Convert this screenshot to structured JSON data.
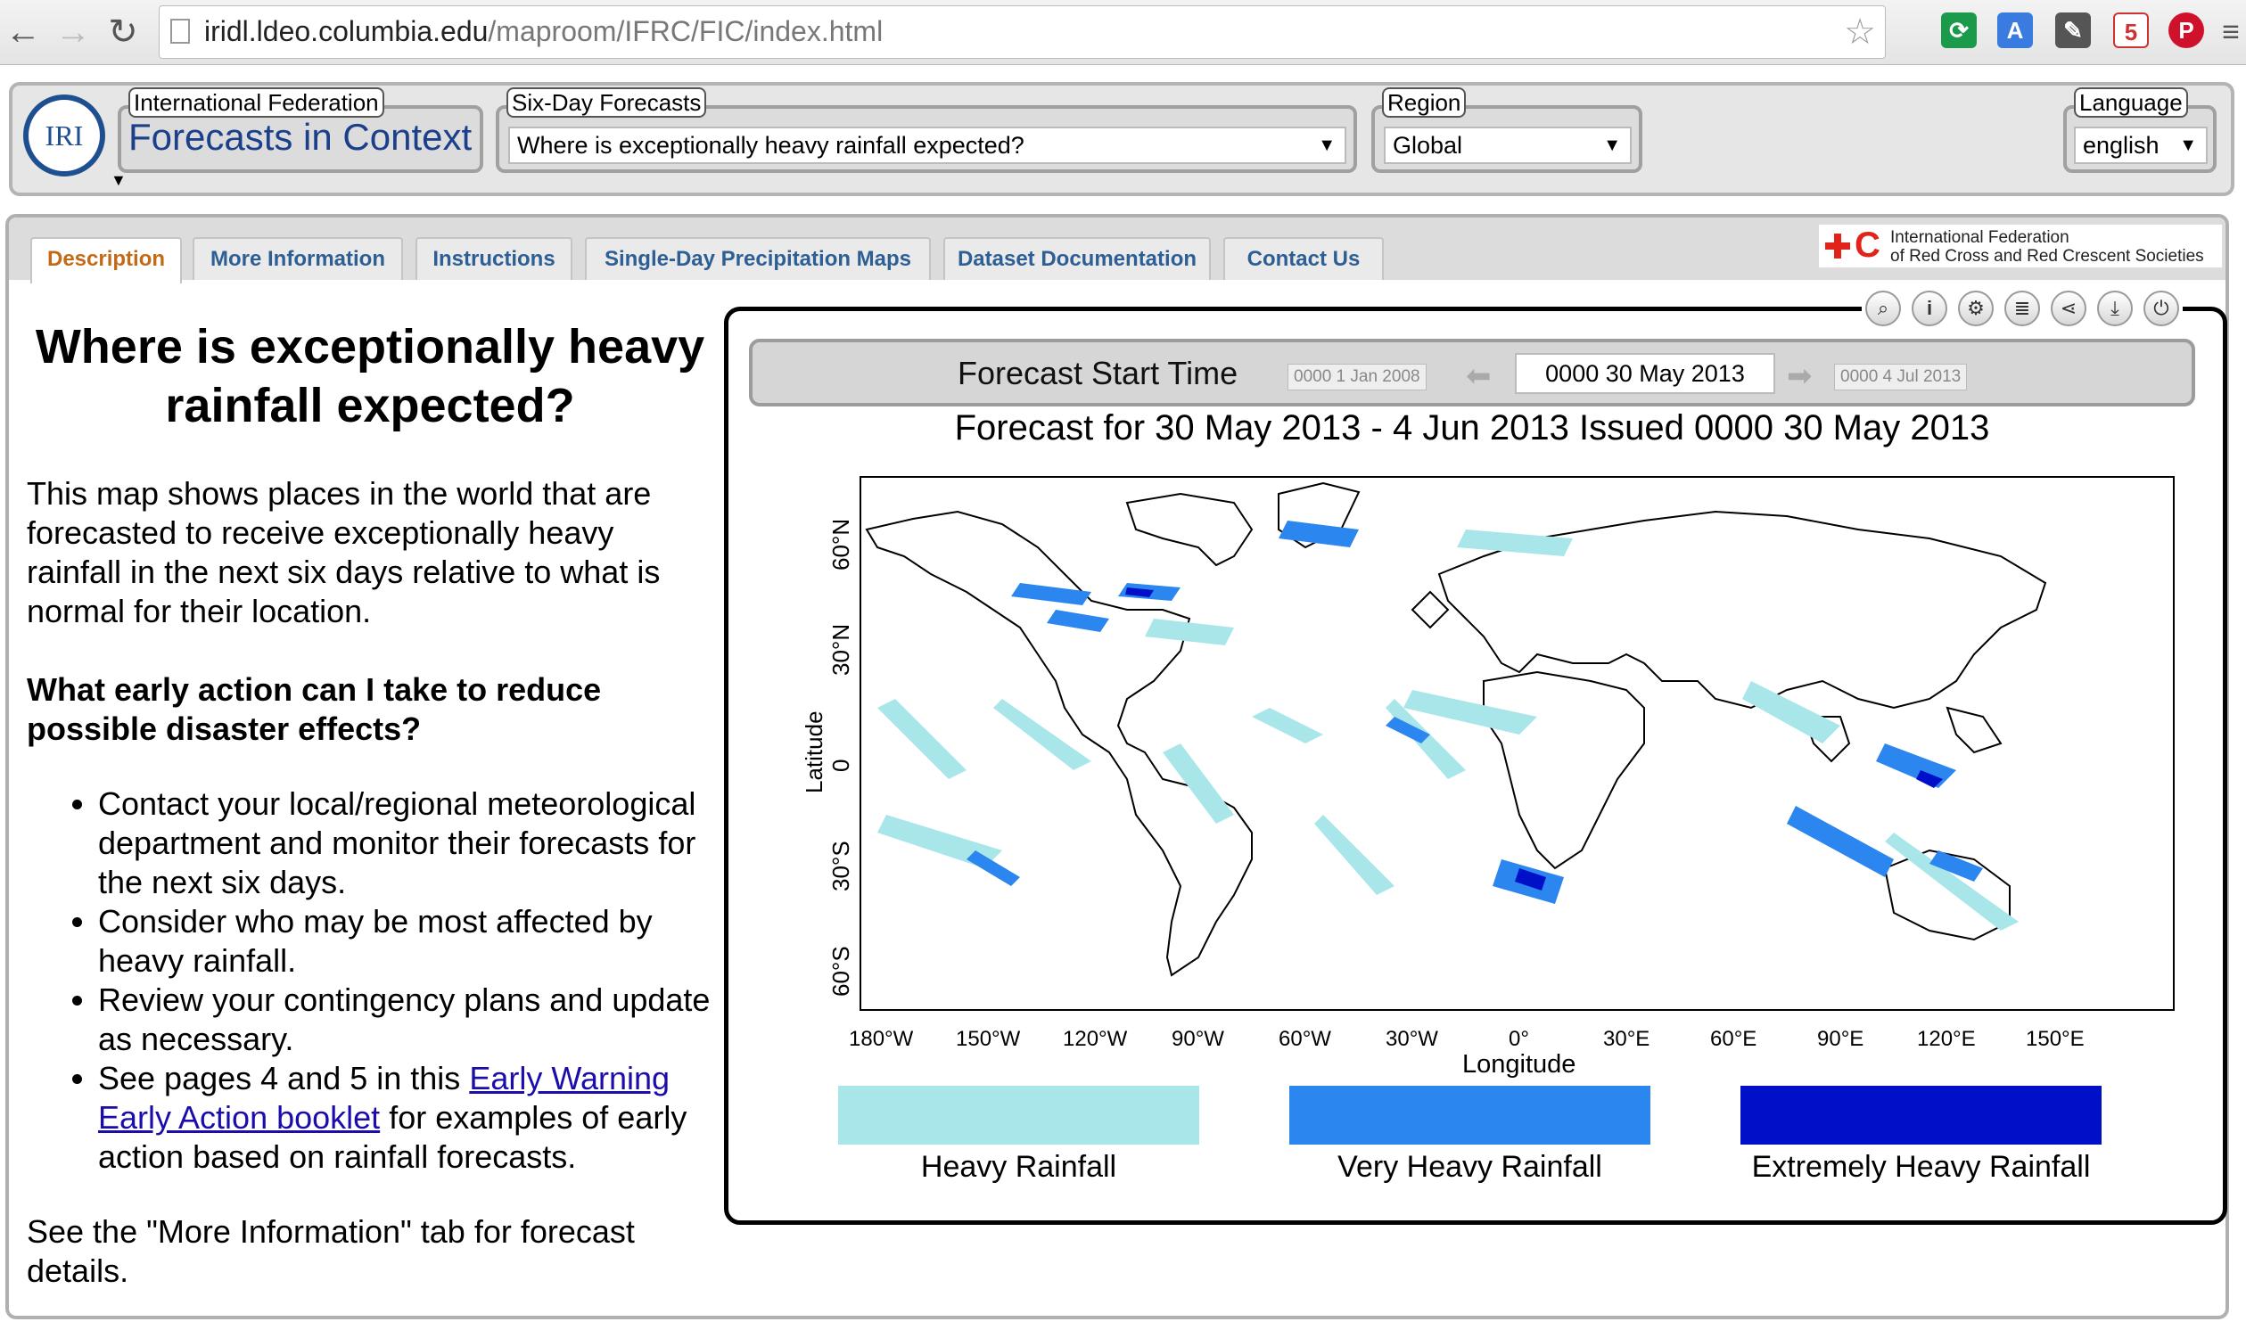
{
  "browser": {
    "url_host": "iridl.ldeo.columbia.edu",
    "url_path": "/maproom/IFRC/FIC/index.html",
    "ext_badge": "5"
  },
  "header": {
    "logo_text": "IRI",
    "org_legend": "International Federation",
    "brand": "Forecasts in Context",
    "forecasts_legend": "Six-Day Forecasts",
    "forecast_select": "Where is exceptionally heavy rainfall expected?",
    "region_legend": "Region",
    "region_select": "Global",
    "language_legend": "Language",
    "language_select": "english"
  },
  "tabs": [
    {
      "label": "Description"
    },
    {
      "label": "More Information"
    },
    {
      "label": "Instructions"
    },
    {
      "label": "Single-Day Precipitation Maps"
    },
    {
      "label": "Dataset Documentation"
    },
    {
      "label": "Contact Us"
    }
  ],
  "ifrc": {
    "line1": "International Federation",
    "line2": "of Red Cross and Red Crescent Societies"
  },
  "description": {
    "title": "Where is exceptionally heavy rainfall expected?",
    "intro": "This map shows places in the world that are forecasted to receive exceptionally heavy rainfall in the next six days relative to what is normal for their location.",
    "question": "What early action can I take to reduce possible disaster effects?",
    "bullets": [
      "Contact your local/regional meteorological department and monitor their forecasts for the next six days.",
      "Consider who may be most affected by heavy rainfall.",
      "Review your contingency plans and update as necessary."
    ],
    "bullet4_pre": "See pages 4 and 5 in this ",
    "bullet4_link": "Early Warning Early Action booklet",
    "bullet4_post": " for examples of early action based on rainfall forecasts.",
    "footer": "See the \"More Information\" tab for forecast details."
  },
  "toolbar": {
    "icons": [
      "zoom-icon",
      "info-icon",
      "settings-icon",
      "list-icon",
      "share-icon",
      "download-icon",
      "power-icon"
    ]
  },
  "timebar": {
    "label": "Forecast Start Time",
    "first": "0000 1 Jan 2008",
    "current": "0000 30 May 2013",
    "last": "0000 4 Jul 2013"
  },
  "map": {
    "title": "Forecast for 30 May 2013 - 4 Jun 2013 Issued 0000 30 May 2013",
    "ylabel": "Latitude",
    "xlabel": "Longitude",
    "yticks": [
      "60°N",
      "30°N",
      "0",
      "30°S",
      "60°S"
    ],
    "xticks": [
      "180°W",
      "150°W",
      "120°W",
      "90°W",
      "60°W",
      "30°W",
      "0°",
      "30°E",
      "60°E",
      "90°E",
      "120°E",
      "150°E"
    ],
    "colors": {
      "heavy": "#a8e6ea",
      "very_heavy": "#2b86f0",
      "extreme": "#0010c8"
    }
  },
  "legend": [
    {
      "label": "Heavy Rainfall",
      "color": "#a8e6ea"
    },
    {
      "label": "Very Heavy Rainfall",
      "color": "#2b86f0"
    },
    {
      "label": "Extremely Heavy Rainfall",
      "color": "#0010c8"
    }
  ]
}
